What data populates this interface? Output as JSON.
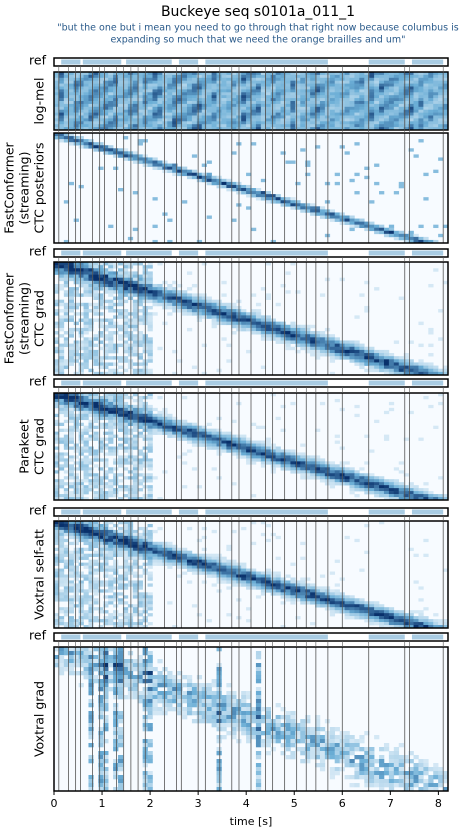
{
  "chart_data": {
    "type": "heatmap-stack",
    "title": "Buckeye seq s0101a_011_1",
    "subtitle": [
      "\"but the one but i mean you need to go through that right now because columbus is",
      "expanding so much that we need the orange brailles and um\""
    ],
    "ref_label": "ref",
    "panels": [
      {
        "label": [
          "log-mel"
        ],
        "style": "mel"
      },
      {
        "label": [
          "FastConformer",
          "(streaming)",
          "CTC posteriors"
        ],
        "style": "post"
      },
      {
        "label": [
          "FastConformer",
          "(streaming)",
          "CTC grad"
        ],
        "style": "grad"
      },
      {
        "label": [
          "Parakeet",
          "CTC grad"
        ],
        "style": "grad"
      },
      {
        "label": [
          "Voxtral self-att"
        ],
        "style": "att"
      },
      {
        "label": [
          "Voxtral grad"
        ],
        "style": "vgrad"
      }
    ],
    "ref_segments": [
      [
        0.15,
        0.55
      ],
      [
        0.6,
        1.4
      ],
      [
        1.5,
        2.45
      ],
      [
        2.6,
        3.0
      ],
      [
        3.15,
        5.7
      ],
      [
        6.55,
        7.3
      ],
      [
        7.45,
        8.1
      ]
    ],
    "boundaries": [
      0.1,
      0.3,
      0.45,
      0.55,
      0.8,
      0.95,
      1.05,
      1.3,
      1.45,
      1.6,
      1.75,
      1.9,
      2.3,
      2.55,
      2.65,
      3.0,
      3.15,
      3.45,
      3.7,
      3.85,
      4.1,
      4.4,
      4.55,
      4.8,
      5.05,
      5.25,
      5.45,
      5.7,
      6.0,
      6.55,
      7.3,
      7.4,
      8.1
    ],
    "xlim": [
      0,
      8.2
    ],
    "xticks": [
      0,
      1,
      2,
      3,
      4,
      5,
      6,
      7,
      8
    ],
    "xlabel": "time [s]"
  }
}
